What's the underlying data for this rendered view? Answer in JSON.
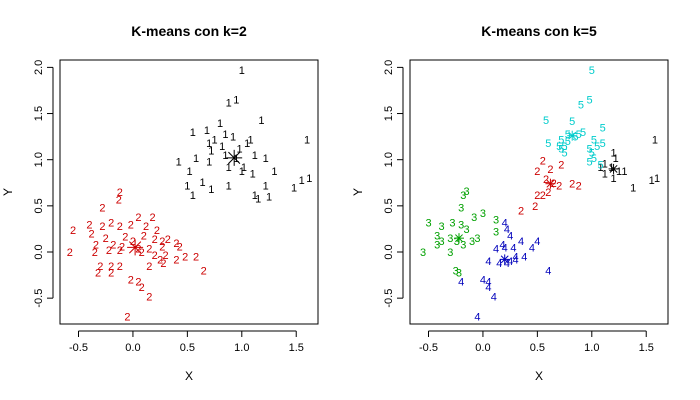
{
  "chart_data": [
    {
      "type": "scatter",
      "title": "K-means con k=2",
      "xlabel": "X",
      "ylabel": "Y",
      "xlim": [
        -0.67,
        1.7
      ],
      "ylim": [
        -0.78,
        2.08
      ],
      "xticks": [
        "-0.5",
        "0.0",
        "0.5",
        "1.0",
        "1.5"
      ],
      "yticks": [
        "-0.5",
        "0.0",
        "0.5",
        "1.0",
        "1.5",
        "2.0"
      ],
      "grid": false,
      "colors": {
        "1": "#000000",
        "2": "#cc0000"
      },
      "clusters": [
        {
          "label": "1",
          "center": [
            0.93,
            1.02
          ],
          "points": [
            [
              1.0,
              1.97
            ],
            [
              0.88,
              1.62
            ],
            [
              0.95,
              1.65
            ],
            [
              1.18,
              1.43
            ],
            [
              0.8,
              1.4
            ],
            [
              0.55,
              1.3
            ],
            [
              0.68,
              1.32
            ],
            [
              0.75,
              1.22
            ],
            [
              0.85,
              1.28
            ],
            [
              0.92,
              1.25
            ],
            [
              1.08,
              1.22
            ],
            [
              0.7,
              1.18
            ],
            [
              0.82,
              1.15
            ],
            [
              0.98,
              1.12
            ],
            [
              1.05,
              1.18
            ],
            [
              0.72,
              1.1
            ],
            [
              0.85,
              1.05
            ],
            [
              0.95,
              1.02
            ],
            [
              1.12,
              1.05
            ],
            [
              1.22,
              1.02
            ],
            [
              0.58,
              1.02
            ],
            [
              0.42,
              0.98
            ],
            [
              0.7,
              0.98
            ],
            [
              0.88,
              0.92
            ],
            [
              1.02,
              0.92
            ],
            [
              1.0,
              0.88
            ],
            [
              0.52,
              0.88
            ],
            [
              1.1,
              0.85
            ],
            [
              1.3,
              0.88
            ],
            [
              0.88,
              0.72
            ],
            [
              0.64,
              0.76
            ],
            [
              0.72,
              0.68
            ],
            [
              0.5,
              0.72
            ],
            [
              0.55,
              0.62
            ],
            [
              1.22,
              0.72
            ],
            [
              1.48,
              0.7
            ],
            [
              1.55,
              0.78
            ],
            [
              1.62,
              0.8
            ],
            [
              1.12,
              0.62
            ],
            [
              1.15,
              0.58
            ],
            [
              1.25,
              0.6
            ],
            [
              1.6,
              1.22
            ]
          ]
        },
        {
          "label": "2",
          "center": [
            0.02,
            0.05
          ],
          "points": [
            [
              -0.12,
              0.65
            ],
            [
              -0.13,
              0.57
            ],
            [
              -0.28,
              0.48
            ],
            [
              0.05,
              0.38
            ],
            [
              0.18,
              0.38
            ],
            [
              -0.4,
              0.3
            ],
            [
              -0.28,
              0.28
            ],
            [
              -0.2,
              0.32
            ],
            [
              -0.12,
              0.28
            ],
            [
              -0.02,
              0.3
            ],
            [
              0.12,
              0.28
            ],
            [
              0.22,
              0.24
            ],
            [
              -0.55,
              0.24
            ],
            [
              -0.38,
              0.2
            ],
            [
              -0.25,
              0.15
            ],
            [
              -0.07,
              0.17
            ],
            [
              0.0,
              0.12
            ],
            [
              0.1,
              0.18
            ],
            [
              0.2,
              0.14
            ],
            [
              0.27,
              0.12
            ],
            [
              0.32,
              0.14
            ],
            [
              0.4,
              0.1
            ],
            [
              -0.34,
              0.08
            ],
            [
              -0.18,
              0.08
            ],
            [
              -0.1,
              0.06
            ],
            [
              0.05,
              0.04
            ],
            [
              0.15,
              0.04
            ],
            [
              0.27,
              0.06
            ],
            [
              0.43,
              0.06
            ],
            [
              -0.58,
              0.0
            ],
            [
              -0.35,
              0.0
            ],
            [
              -0.22,
              0.02
            ],
            [
              -0.12,
              0.02
            ],
            [
              0.08,
              0.0
            ],
            [
              0.2,
              -0.03
            ],
            [
              0.3,
              -0.03
            ],
            [
              0.48,
              -0.05
            ],
            [
              0.58,
              -0.05
            ],
            [
              0.25,
              -0.08
            ],
            [
              0.28,
              -0.12
            ],
            [
              0.4,
              -0.08
            ],
            [
              -0.3,
              -0.15
            ],
            [
              -0.2,
              -0.15
            ],
            [
              -0.12,
              -0.15
            ],
            [
              -0.32,
              -0.22
            ],
            [
              -0.2,
              -0.22
            ],
            [
              0.15,
              -0.15
            ],
            [
              0.65,
              -0.2
            ],
            [
              -0.02,
              -0.3
            ],
            [
              0.05,
              -0.32
            ],
            [
              0.08,
              -0.38
            ],
            [
              0.15,
              -0.48
            ],
            [
              -0.05,
              -0.7
            ]
          ]
        }
      ]
    },
    {
      "type": "scatter",
      "title": "K-means con k=5",
      "xlabel": "X",
      "ylabel": "Y",
      "xlim": [
        -0.67,
        1.7
      ],
      "ylim": [
        -0.78,
        2.08
      ],
      "xticks": [
        "-0.5",
        "0.0",
        "0.5",
        "1.0",
        "1.5"
      ],
      "yticks": [
        "-0.5",
        "0.0",
        "0.5",
        "1.0",
        "1.5",
        "2.0"
      ],
      "grid": false,
      "colors": {
        "1": "#000000",
        "2": "#cc0000",
        "3": "#00a000",
        "4": "#0000bb",
        "5": "#00cccc"
      },
      "clusters": [
        {
          "label": "1",
          "center": [
            1.2,
            0.9
          ],
          "points": [
            [
              1.2,
              1.08
            ],
            [
              1.22,
              1.02
            ],
            [
              1.12,
              0.96
            ],
            [
              1.18,
              0.92
            ],
            [
              1.25,
              0.88
            ],
            [
              1.08,
              0.92
            ],
            [
              1.12,
              0.85
            ],
            [
              1.2,
              0.8
            ],
            [
              1.38,
              0.7
            ],
            [
              1.55,
              0.78
            ],
            [
              1.6,
              0.8
            ],
            [
              1.3,
              0.88
            ],
            [
              1.58,
              1.22
            ]
          ]
        },
        {
          "label": "2",
          "center": [
            0.62,
            0.74
          ],
          "points": [
            [
              0.55,
              0.99
            ],
            [
              0.5,
              0.88
            ],
            [
              0.62,
              0.9
            ],
            [
              0.72,
              0.95
            ],
            [
              0.58,
              0.79
            ],
            [
              0.65,
              0.75
            ],
            [
              0.7,
              0.72
            ],
            [
              0.6,
              0.65
            ],
            [
              0.55,
              0.62
            ],
            [
              0.5,
              0.62
            ],
            [
              0.48,
              0.5
            ],
            [
              0.35,
              0.45
            ],
            [
              0.82,
              0.74
            ],
            [
              0.88,
              0.72
            ]
          ]
        },
        {
          "label": "3",
          "center": [
            -0.22,
            0.15
          ],
          "points": [
            [
              -0.15,
              0.66
            ],
            [
              -0.18,
              0.62
            ],
            [
              -0.2,
              0.48
            ],
            [
              -0.5,
              0.32
            ],
            [
              -0.38,
              0.28
            ],
            [
              -0.28,
              0.32
            ],
            [
              -0.2,
              0.3
            ],
            [
              -0.08,
              0.38
            ],
            [
              0.0,
              0.42
            ],
            [
              0.12,
              0.35
            ],
            [
              -0.15,
              0.25
            ],
            [
              -0.42,
              0.18
            ],
            [
              -0.3,
              0.15
            ],
            [
              -0.24,
              0.12
            ],
            [
              -0.18,
              0.08
            ],
            [
              -0.1,
              0.12
            ],
            [
              -0.05,
              0.15
            ],
            [
              0.12,
              0.22
            ],
            [
              -0.38,
              0.12
            ],
            [
              -0.42,
              0.08
            ],
            [
              -0.55,
              0.0
            ],
            [
              -0.3,
              0.0
            ],
            [
              -0.25,
              -0.2
            ],
            [
              -0.22,
              -0.22
            ]
          ]
        },
        {
          "label": "4",
          "center": [
            0.2,
            -0.08
          ],
          "points": [
            [
              0.2,
              0.32
            ],
            [
              0.22,
              0.25
            ],
            [
              0.25,
              0.18
            ],
            [
              0.35,
              0.12
            ],
            [
              0.45,
              0.05
            ],
            [
              0.5,
              0.12
            ],
            [
              0.18,
              0.08
            ],
            [
              0.12,
              0.04
            ],
            [
              0.2,
              0.05
            ],
            [
              0.28,
              0.05
            ],
            [
              0.3,
              -0.05
            ],
            [
              0.38,
              -0.05
            ],
            [
              0.05,
              -0.1
            ],
            [
              0.15,
              -0.12
            ],
            [
              0.22,
              -0.12
            ],
            [
              0.25,
              -0.1
            ],
            [
              0.3,
              -0.08
            ],
            [
              0.6,
              -0.2
            ],
            [
              -0.2,
              -0.32
            ],
            [
              0.0,
              -0.3
            ],
            [
              0.05,
              -0.32
            ],
            [
              0.05,
              -0.38
            ],
            [
              0.1,
              -0.48
            ],
            [
              -0.05,
              -0.7
            ]
          ]
        },
        {
          "label": "5",
          "center": [
            0.82,
            1.26
          ],
          "points": [
            [
              1.0,
              1.97
            ],
            [
              0.98,
              1.65
            ],
            [
              0.9,
              1.6
            ],
            [
              0.58,
              1.43
            ],
            [
              0.82,
              1.42
            ],
            [
              0.92,
              1.3
            ],
            [
              0.85,
              1.25
            ],
            [
              0.78,
              1.28
            ],
            [
              0.88,
              1.28
            ],
            [
              1.1,
              1.35
            ],
            [
              0.72,
              1.22
            ],
            [
              0.78,
              1.2
            ],
            [
              0.6,
              1.18
            ],
            [
              0.7,
              1.15
            ],
            [
              0.75,
              1.15
            ],
            [
              0.72,
              1.12
            ],
            [
              0.75,
              1.08
            ],
            [
              1.02,
              1.22
            ],
            [
              1.05,
              1.15
            ],
            [
              1.1,
              1.18
            ],
            [
              0.98,
              1.12
            ],
            [
              1.0,
              1.08
            ],
            [
              1.02,
              1.02
            ],
            [
              0.98,
              0.98
            ],
            [
              1.08,
              0.95
            ]
          ]
        }
      ]
    }
  ]
}
